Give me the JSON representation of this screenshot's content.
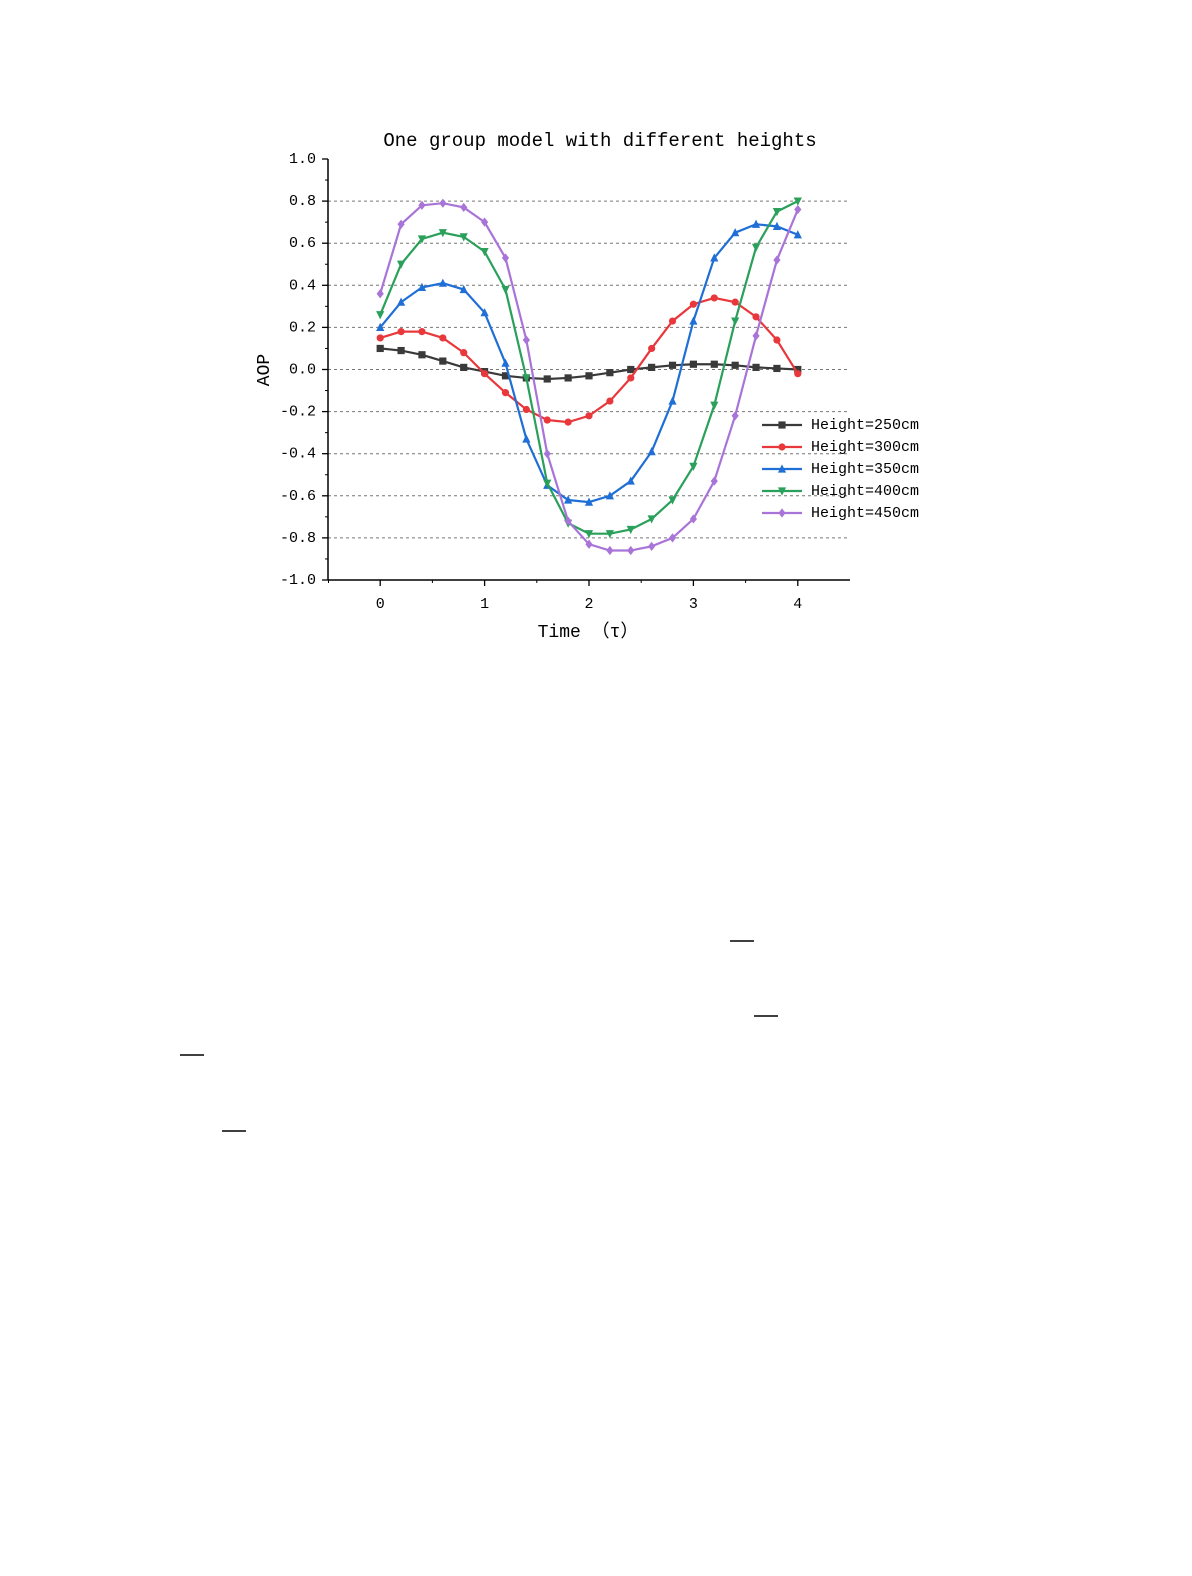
{
  "chart_data": {
    "type": "line",
    "title": "One group model with different heights",
    "x_label": "Time （τ）",
    "y_label": "AOP",
    "x": [
      0,
      0.2,
      0.4,
      0.6,
      0.8,
      1,
      1.2,
      1.4,
      1.6,
      1.8,
      2,
      2.2,
      2.4,
      2.6,
      2.8,
      3,
      3.2,
      3.4,
      3.6,
      3.8,
      4
    ],
    "xlim": [
      -0.5,
      4.5
    ],
    "xticks": [
      0,
      1,
      2,
      3,
      4
    ],
    "ylim": [
      -1,
      1
    ],
    "yticks": [
      {
        "value": -1,
        "label": "-1.0"
      },
      -0.8,
      -0.6,
      -0.4,
      -0.2,
      {
        "value": 0,
        "label": "0.0"
      },
      0.2,
      0.4,
      0.6,
      0.8,
      {
        "value": 1,
        "label": "1.0"
      }
    ],
    "grid": true,
    "legend": "lower right",
    "series": [
      {
        "name": "Height=250cm",
        "color": "#3a3a3a",
        "values": [
          0.1,
          0.09,
          0.07,
          0.04,
          0.01,
          -0.01,
          -0.03,
          -0.04,
          -0.045,
          -0.04,
          -0.03,
          -0.015,
          0.0,
          0.01,
          0.02,
          0.025,
          0.025,
          0.02,
          0.01,
          0.005,
          0.0
        ]
      },
      {
        "name": "Height=300cm",
        "color": "#e8383c",
        "values": [
          0.15,
          0.18,
          0.18,
          0.15,
          0.08,
          -0.02,
          -0.11,
          -0.19,
          -0.24,
          -0.25,
          -0.22,
          -0.15,
          -0.04,
          0.1,
          0.23,
          0.31,
          0.34,
          0.32,
          0.25,
          0.14,
          -0.02
        ]
      },
      {
        "name": "Height=350cm",
        "color": "#1f6fd6",
        "values": [
          0.2,
          0.32,
          0.39,
          0.41,
          0.38,
          0.27,
          0.03,
          -0.33,
          -0.55,
          -0.62,
          -0.63,
          -0.6,
          -0.53,
          -0.39,
          -0.15,
          0.23,
          0.53,
          0.65,
          0.69,
          0.68,
          0.64
        ]
      },
      {
        "name": "Height=400cm",
        "color": "#2aa05a",
        "values": [
          0.26,
          0.5,
          0.62,
          0.65,
          0.63,
          0.56,
          0.38,
          -0.04,
          -0.54,
          -0.73,
          -0.78,
          -0.78,
          -0.76,
          -0.71,
          -0.62,
          -0.46,
          -0.17,
          0.23,
          0.58,
          0.75,
          0.8
        ]
      },
      {
        "name": "Height=450cm",
        "color": "#a974d8",
        "values": [
          0.36,
          0.69,
          0.78,
          0.79,
          0.77,
          0.7,
          0.53,
          0.14,
          -0.4,
          -0.72,
          -0.83,
          -0.86,
          -0.86,
          -0.84,
          -0.8,
          -0.71,
          -0.53,
          -0.22,
          0.16,
          0.52,
          0.76
        ]
      }
    ]
  }
}
